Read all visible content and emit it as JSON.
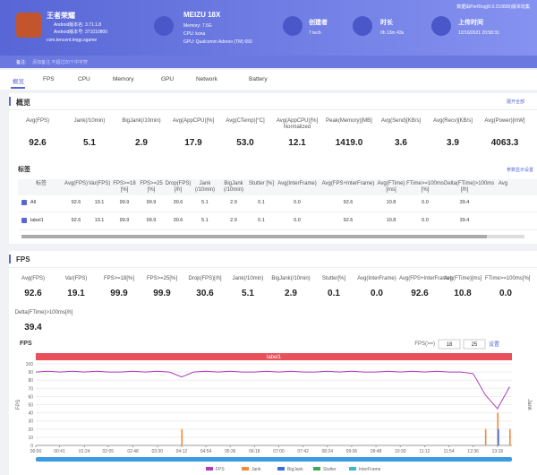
{
  "header": {
    "app_name": "王者荣耀",
    "app_version_name": "Android版本名: 3.71.1.8",
    "app_version_code": "Android版本号: 371010800",
    "package": "com.tencent.tmgp.sgame",
    "device": "MEIZU 18X",
    "memory": "Memory: 7.5G",
    "cpu": "CPU: kona",
    "gpu": "GPU: Qualcomm Adreno (TM) 650",
    "creator_label": "创建者",
    "creator": "7 tech",
    "duration_label": "时长",
    "duration": "0h 13m 43s",
    "upload_label": "上传时间",
    "upload_time": "12/10/2021 20:58:31",
    "collector_note": "数据由PerfDog(6.0.210830)版本收集",
    "remark_label": "备注:",
    "remark": "添加备注  不超过20个中字符"
  },
  "tabs": [
    "概览",
    "FPS",
    "CPU",
    "Memory",
    "GPU",
    "Network",
    "Battery"
  ],
  "overview": {
    "title": "概览",
    "action": "展开全部",
    "metrics": [
      {
        "label": "Avg(FPS)",
        "value": "92.6"
      },
      {
        "label": "Jank(/10min)",
        "value": "5.1"
      },
      {
        "label": "BigJank(/10min)",
        "value": "2.9"
      },
      {
        "label": "Avg(AppCPU)[%]",
        "value": "17.9"
      },
      {
        "label": "Avg(CTemp)[°C]",
        "value": "53.0"
      },
      {
        "label": "Avg(AppCPU)[%] Normalized",
        "value": "12.1"
      },
      {
        "label": "Peak(Memory)[MB]",
        "value": "1419.0"
      },
      {
        "label": "Avg(Send)[KB/s]",
        "value": "3.6"
      },
      {
        "label": "Avg(Recv)[KB/s]",
        "value": "3.9"
      },
      {
        "label": "Avg(Power)[mW]",
        "value": "4063.3"
      }
    ]
  },
  "labels_table": {
    "title": "标签",
    "settings": "参数显示设置",
    "columns": [
      "标签",
      "Avg(FPS)",
      "Var(FPS)",
      "FPS>=18 [%]",
      "FPS>=25 [%]",
      "Drop(FPS) [/h]",
      "Jank (/10min)",
      "BigJank (/10min)",
      "Stutter [%]",
      "Avg(InterFrame)",
      "Avg(FPS+InterFrame)",
      "Avg(FTime) [ms]",
      "FTime>=100ms [%]",
      "Delta(FTime)>100ms [/h]",
      "Avg"
    ],
    "rows": [
      [
        "All",
        "92.6",
        "19.1",
        "99.9",
        "99.9",
        "30.6",
        "5.1",
        "2.9",
        "0.1",
        "0.0",
        "92.6",
        "10.8",
        "0.0",
        "39.4"
      ],
      [
        "label1",
        "92.6",
        "19.1",
        "99.9",
        "99.9",
        "30.6",
        "5.1",
        "2.9",
        "0.1",
        "0.0",
        "92.6",
        "10.8",
        "0.0",
        "39.4"
      ]
    ]
  },
  "fps_section": {
    "title": "FPS",
    "metrics": [
      {
        "label": "Avg(FPS)",
        "value": "92.6"
      },
      {
        "label": "Var(FPS)",
        "value": "19.1"
      },
      {
        "label": "FPS>=18[%]",
        "value": "99.9"
      },
      {
        "label": "FPS>=25[%]",
        "value": "99.9"
      },
      {
        "label": "Drop(FPS)[/h]",
        "value": "30.6"
      },
      {
        "label": "Jank(/10min)",
        "value": "5.1"
      },
      {
        "label": "BigJank(/10min)",
        "value": "2.9"
      },
      {
        "label": "Stutter[%]",
        "value": "0.1"
      },
      {
        "label": "Avg(InterFrame)",
        "value": "0.0"
      },
      {
        "label": "Avg(FPS+InterFrame)",
        "value": "92.6"
      },
      {
        "label": "Avg(FTime)[ms]",
        "value": "10.8"
      },
      {
        "label": "FTime>=100ms[%]",
        "value": "0.0"
      },
      {
        "label": "Delta(FTime)>100ms[/h]",
        "value": "39.4"
      }
    ]
  },
  "fps_chart": {
    "type": "line",
    "title": "FPS",
    "threshold_label": "FPS(>=)",
    "thresholds": [
      18,
      25
    ],
    "set_button": "设置",
    "band_label": "label1",
    "y_label": "FPS",
    "y2_label": "Jank",
    "x": [
      0,
      21,
      42,
      63,
      84,
      105,
      126,
      147,
      168,
      189,
      210,
      231,
      252,
      273,
      294,
      315,
      336,
      357,
      378,
      399,
      420,
      441,
      462,
      483,
      504,
      525,
      546,
      567,
      588,
      609,
      630,
      651,
      672,
      693,
      714,
      735,
      756,
      777,
      798,
      819
    ],
    "xlim": [
      0,
      823
    ],
    "xticks": [
      {
        "value": 0,
        "label": "00:00"
      },
      {
        "value": 41,
        "label": "00:41"
      },
      {
        "value": 84,
        "label": "01:24"
      },
      {
        "value": 125,
        "label": "02:05"
      },
      {
        "value": 168,
        "label": "02:48"
      },
      {
        "value": 210,
        "label": "03:30"
      },
      {
        "value": 252,
        "label": "04:12"
      },
      {
        "value": 294,
        "label": "04:54"
      },
      {
        "value": 336,
        "label": "05:36"
      },
      {
        "value": 378,
        "label": "06:18"
      },
      {
        "value": 420,
        "label": "07:00"
      },
      {
        "value": 462,
        "label": "07:42"
      },
      {
        "value": 504,
        "label": "08:24"
      },
      {
        "value": 546,
        "label": "09:06"
      },
      {
        "value": 588,
        "label": "09:48"
      },
      {
        "value": 630,
        "label": "10:30"
      },
      {
        "value": 672,
        "label": "11:12"
      },
      {
        "value": 714,
        "label": "11:54"
      },
      {
        "value": 756,
        "label": "12:36"
      },
      {
        "value": 798,
        "label": "13:18"
      }
    ],
    "ylim": [
      0,
      100
    ],
    "yticks": [
      0,
      10,
      20,
      30,
      40,
      50,
      60,
      70,
      80,
      90,
      100
    ],
    "y2lim": [
      0,
      5
    ],
    "series": [
      {
        "name": "FPS",
        "color": "#b03cb8",
        "values": [
          90,
          91,
          90,
          91,
          90,
          91,
          90,
          90,
          91,
          90,
          91,
          90,
          84,
          90,
          91,
          90,
          91,
          90,
          90,
          91,
          90,
          91,
          90,
          90,
          91,
          90,
          91,
          90,
          90,
          91,
          90,
          91,
          90,
          91,
          90,
          90,
          88,
          62,
          45,
          72
        ]
      },
      {
        "name": "Jank",
        "color": "#f08a3c",
        "axis": "y2",
        "values": [
          0,
          0,
          0,
          0,
          0,
          0,
          0,
          0,
          0,
          0,
          0,
          0,
          1,
          0,
          0,
          0,
          0,
          0,
          0,
          0,
          0,
          0,
          0,
          0,
          0,
          0,
          0,
          0,
          0,
          0,
          0,
          0,
          0,
          0,
          0,
          0,
          0,
          1,
          2,
          1
        ]
      },
      {
        "name": "BigJank",
        "color": "#3c6ed8",
        "axis": "y2",
        "values": [
          0,
          0,
          0,
          0,
          0,
          0,
          0,
          0,
          0,
          0,
          0,
          0,
          0,
          0,
          0,
          0,
          0,
          0,
          0,
          0,
          0,
          0,
          0,
          0,
          0,
          0,
          0,
          0,
          0,
          0,
          0,
          0,
          0,
          0,
          0,
          0,
          0,
          0,
          1,
          0
        ]
      },
      {
        "name": "Stutter",
        "color": "#3caa5a",
        "axis": "y2",
        "values": [
          0,
          0,
          0,
          0,
          0,
          0,
          0,
          0,
          0,
          0,
          0,
          0,
          0,
          0,
          0,
          0,
          0,
          0,
          0,
          0,
          0,
          0,
          0,
          0,
          0,
          0,
          0,
          0,
          0,
          0,
          0,
          0,
          0,
          0,
          0,
          0,
          0,
          0,
          0,
          0
        ]
      },
      {
        "name": "InterFrame",
        "color": "#40b8c8",
        "axis": "y2",
        "values": [
          0,
          0,
          0,
          0,
          0,
          0,
          0,
          0,
          0,
          0,
          0,
          0,
          0,
          0,
          0,
          0,
          0,
          0,
          0,
          0,
          0,
          0,
          0,
          0,
          0,
          0,
          0,
          0,
          0,
          0,
          0,
          0,
          0,
          0,
          0,
          0,
          0,
          0,
          0,
          0
        ]
      }
    ]
  }
}
